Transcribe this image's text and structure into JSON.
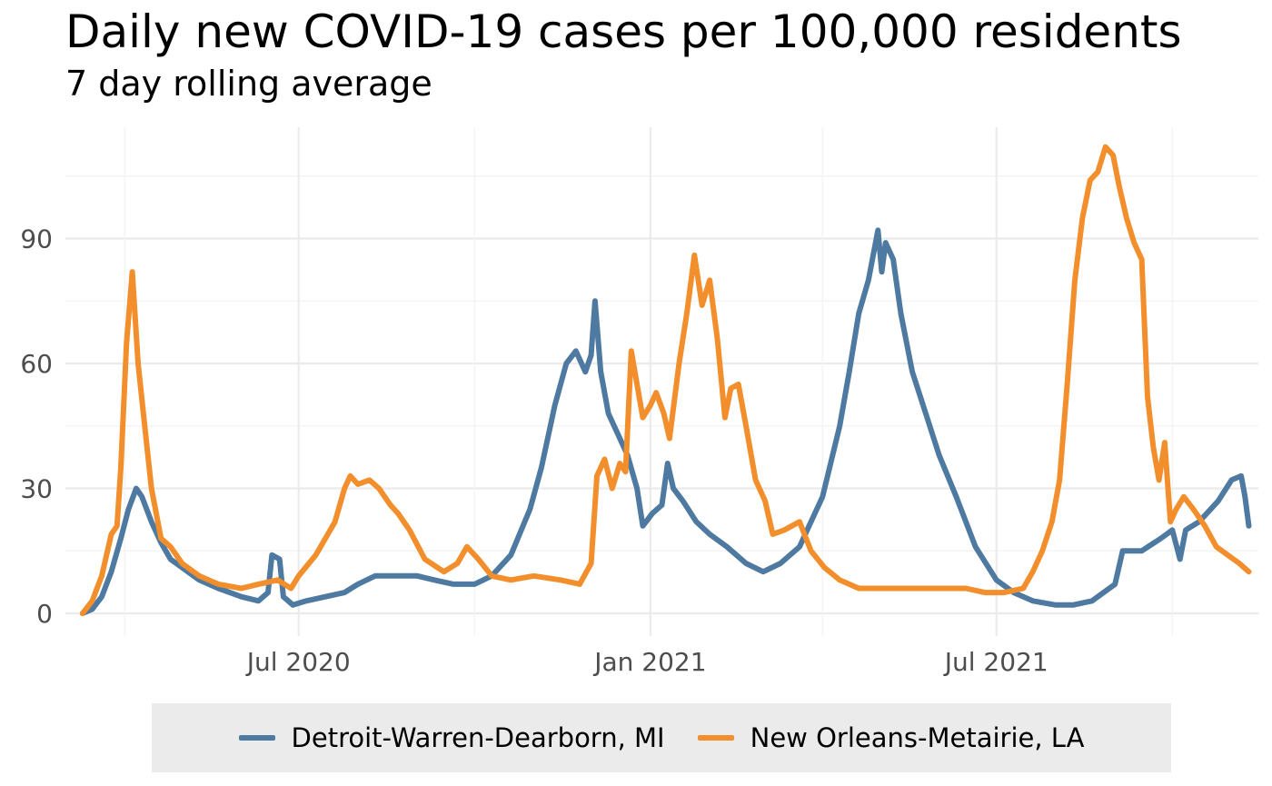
{
  "chart_data": {
    "type": "line",
    "title": "Daily new COVID-19 cases per 100,000 residents",
    "subtitle": "7 day rolling average",
    "xlabel": "",
    "ylabel": "",
    "x_range": [
      "2020-03-01",
      "2021-11-15"
    ],
    "ylim": [
      0,
      115
    ],
    "y_ticks": [
      0,
      30,
      60,
      90
    ],
    "x_ticks": [
      {
        "date": "2020-07-01",
        "label": "Jul 2020"
      },
      {
        "date": "2021-01-01",
        "label": "Jan 2021"
      },
      {
        "date": "2021-07-01",
        "label": "Jul 2021"
      }
    ],
    "x_minor_ticks": [
      "2020-04-01",
      "2020-10-01",
      "2021-04-01",
      "2021-10-01"
    ],
    "grid": true,
    "legend_position": "bottom",
    "series": [
      {
        "name": "Detroit-Warren-Dearborn, MI",
        "color": "#4e79a0",
        "points": [
          [
            "2020-03-10",
            0
          ],
          [
            "2020-03-15",
            1
          ],
          [
            "2020-03-20",
            4
          ],
          [
            "2020-03-25",
            10
          ],
          [
            "2020-03-30",
            18
          ],
          [
            "2020-04-03",
            25
          ],
          [
            "2020-04-07",
            30
          ],
          [
            "2020-04-10",
            28
          ],
          [
            "2020-04-15",
            22
          ],
          [
            "2020-04-20",
            17
          ],
          [
            "2020-04-25",
            13
          ],
          [
            "2020-05-01",
            11
          ],
          [
            "2020-05-10",
            8
          ],
          [
            "2020-05-20",
            6
          ],
          [
            "2020-06-01",
            4
          ],
          [
            "2020-06-10",
            3
          ],
          [
            "2020-06-15",
            5
          ],
          [
            "2020-06-17",
            14
          ],
          [
            "2020-06-21",
            13
          ],
          [
            "2020-06-23",
            4
          ],
          [
            "2020-06-28",
            2
          ],
          [
            "2020-07-05",
            3
          ],
          [
            "2020-07-15",
            4
          ],
          [
            "2020-07-25",
            5
          ],
          [
            "2020-08-01",
            7
          ],
          [
            "2020-08-10",
            9
          ],
          [
            "2020-08-20",
            9
          ],
          [
            "2020-09-01",
            9
          ],
          [
            "2020-09-10",
            8
          ],
          [
            "2020-09-20",
            7
          ],
          [
            "2020-10-01",
            7
          ],
          [
            "2020-10-10",
            9
          ],
          [
            "2020-10-20",
            14
          ],
          [
            "2020-10-30",
            25
          ],
          [
            "2020-11-05",
            35
          ],
          [
            "2020-11-12",
            50
          ],
          [
            "2020-11-18",
            60
          ],
          [
            "2020-11-23",
            63
          ],
          [
            "2020-11-28",
            58
          ],
          [
            "2020-12-01",
            62
          ],
          [
            "2020-12-03",
            75
          ],
          [
            "2020-12-06",
            58
          ],
          [
            "2020-12-10",
            48
          ],
          [
            "2020-12-15",
            43
          ],
          [
            "2020-12-20",
            38
          ],
          [
            "2020-12-25",
            30
          ],
          [
            "2020-12-28",
            21
          ],
          [
            "2021-01-02",
            24
          ],
          [
            "2021-01-07",
            26
          ],
          [
            "2021-01-10",
            36
          ],
          [
            "2021-01-13",
            30
          ],
          [
            "2021-01-18",
            27
          ],
          [
            "2021-01-25",
            22
          ],
          [
            "2021-02-01",
            19
          ],
          [
            "2021-02-10",
            16
          ],
          [
            "2021-02-20",
            12
          ],
          [
            "2021-03-01",
            10
          ],
          [
            "2021-03-10",
            12
          ],
          [
            "2021-03-20",
            16
          ],
          [
            "2021-03-25",
            21
          ],
          [
            "2021-04-01",
            28
          ],
          [
            "2021-04-10",
            45
          ],
          [
            "2021-04-15",
            58
          ],
          [
            "2021-04-20",
            72
          ],
          [
            "2021-04-25",
            80
          ],
          [
            "2021-04-30",
            92
          ],
          [
            "2021-05-02",
            82
          ],
          [
            "2021-05-04",
            89
          ],
          [
            "2021-05-08",
            85
          ],
          [
            "2021-05-12",
            72
          ],
          [
            "2021-05-18",
            58
          ],
          [
            "2021-05-25",
            48
          ],
          [
            "2021-06-01",
            38
          ],
          [
            "2021-06-10",
            28
          ],
          [
            "2021-06-20",
            16
          ],
          [
            "2021-07-01",
            8
          ],
          [
            "2021-07-10",
            5
          ],
          [
            "2021-07-20",
            3
          ],
          [
            "2021-08-01",
            2
          ],
          [
            "2021-08-10",
            2
          ],
          [
            "2021-08-20",
            3
          ],
          [
            "2021-09-01",
            7
          ],
          [
            "2021-09-05",
            15
          ],
          [
            "2021-09-15",
            15
          ],
          [
            "2021-09-25",
            18
          ],
          [
            "2021-10-01",
            20
          ],
          [
            "2021-10-05",
            13
          ],
          [
            "2021-10-08",
            20
          ],
          [
            "2021-10-15",
            22
          ],
          [
            "2021-10-25",
            27
          ],
          [
            "2021-11-01",
            32
          ],
          [
            "2021-11-06",
            33
          ],
          [
            "2021-11-08",
            28
          ],
          [
            "2021-11-10",
            21
          ]
        ]
      },
      {
        "name": "New Orleans-Metairie, LA",
        "color": "#f28e2b",
        "points": [
          [
            "2020-03-10",
            0
          ],
          [
            "2020-03-15",
            3
          ],
          [
            "2020-03-20",
            9
          ],
          [
            "2020-03-25",
            19
          ],
          [
            "2020-03-28",
            21
          ],
          [
            "2020-03-30",
            35
          ],
          [
            "2020-04-02",
            65
          ],
          [
            "2020-04-05",
            82
          ],
          [
            "2020-04-08",
            60
          ],
          [
            "2020-04-11",
            47
          ],
          [
            "2020-04-15",
            30
          ],
          [
            "2020-04-20",
            18
          ],
          [
            "2020-04-25",
            16
          ],
          [
            "2020-05-01",
            12
          ],
          [
            "2020-05-10",
            9
          ],
          [
            "2020-05-20",
            7
          ],
          [
            "2020-06-01",
            6
          ],
          [
            "2020-06-10",
            7
          ],
          [
            "2020-06-20",
            8
          ],
          [
            "2020-06-27",
            6
          ],
          [
            "2020-07-01",
            9
          ],
          [
            "2020-07-10",
            14
          ],
          [
            "2020-07-15",
            18
          ],
          [
            "2020-07-20",
            22
          ],
          [
            "2020-07-25",
            30
          ],
          [
            "2020-07-28",
            33
          ],
          [
            "2020-08-01",
            31
          ],
          [
            "2020-08-07",
            32
          ],
          [
            "2020-08-12",
            30
          ],
          [
            "2020-08-18",
            26
          ],
          [
            "2020-08-22",
            24
          ],
          [
            "2020-08-28",
            20
          ],
          [
            "2020-09-05",
            13
          ],
          [
            "2020-09-15",
            10
          ],
          [
            "2020-09-22",
            12
          ],
          [
            "2020-09-27",
            16
          ],
          [
            "2020-10-03",
            13
          ],
          [
            "2020-10-10",
            9
          ],
          [
            "2020-10-20",
            8
          ],
          [
            "2020-11-01",
            9
          ],
          [
            "2020-11-15",
            8
          ],
          [
            "2020-11-25",
            7
          ],
          [
            "2020-12-01",
            12
          ],
          [
            "2020-12-04",
            33
          ],
          [
            "2020-12-08",
            37
          ],
          [
            "2020-12-12",
            30
          ],
          [
            "2020-12-16",
            36
          ],
          [
            "2020-12-19",
            34
          ],
          [
            "2020-12-22",
            63
          ],
          [
            "2020-12-25",
            55
          ],
          [
            "2020-12-28",
            47
          ],
          [
            "2021-01-01",
            50
          ],
          [
            "2021-01-04",
            53
          ],
          [
            "2021-01-08",
            48
          ],
          [
            "2021-01-11",
            42
          ],
          [
            "2021-01-16",
            60
          ],
          [
            "2021-01-20",
            72
          ],
          [
            "2021-01-24",
            86
          ],
          [
            "2021-01-28",
            74
          ],
          [
            "2021-02-01",
            80
          ],
          [
            "2021-02-05",
            66
          ],
          [
            "2021-02-09",
            47
          ],
          [
            "2021-02-12",
            54
          ],
          [
            "2021-02-16",
            55
          ],
          [
            "2021-02-20",
            45
          ],
          [
            "2021-02-25",
            32
          ],
          [
            "2021-03-02",
            27
          ],
          [
            "2021-03-06",
            19
          ],
          [
            "2021-03-12",
            20
          ],
          [
            "2021-03-20",
            22
          ],
          [
            "2021-03-26",
            15
          ],
          [
            "2021-04-02",
            11
          ],
          [
            "2021-04-10",
            8
          ],
          [
            "2021-04-20",
            6
          ],
          [
            "2021-05-01",
            6
          ],
          [
            "2021-05-15",
            6
          ],
          [
            "2021-06-01",
            6
          ],
          [
            "2021-06-15",
            6
          ],
          [
            "2021-06-25",
            5
          ],
          [
            "2021-07-05",
            5
          ],
          [
            "2021-07-15",
            6
          ],
          [
            "2021-07-20",
            10
          ],
          [
            "2021-07-25",
            15
          ],
          [
            "2021-07-30",
            22
          ],
          [
            "2021-08-03",
            32
          ],
          [
            "2021-08-07",
            55
          ],
          [
            "2021-08-11",
            80
          ],
          [
            "2021-08-15",
            95
          ],
          [
            "2021-08-19",
            104
          ],
          [
            "2021-08-23",
            106
          ],
          [
            "2021-08-27",
            112
          ],
          [
            "2021-08-31",
            110
          ],
          [
            "2021-09-03",
            103
          ],
          [
            "2021-09-07",
            95
          ],
          [
            "2021-09-11",
            89
          ],
          [
            "2021-09-15",
            85
          ],
          [
            "2021-09-18",
            52
          ],
          [
            "2021-09-21",
            40
          ],
          [
            "2021-09-24",
            32
          ],
          [
            "2021-09-27",
            41
          ],
          [
            "2021-09-30",
            22
          ],
          [
            "2021-10-03",
            25
          ],
          [
            "2021-10-07",
            28
          ],
          [
            "2021-10-12",
            25
          ],
          [
            "2021-10-18",
            21
          ],
          [
            "2021-10-24",
            16
          ],
          [
            "2021-10-30",
            14
          ],
          [
            "2021-11-05",
            12
          ],
          [
            "2021-11-10",
            10
          ]
        ]
      }
    ]
  }
}
